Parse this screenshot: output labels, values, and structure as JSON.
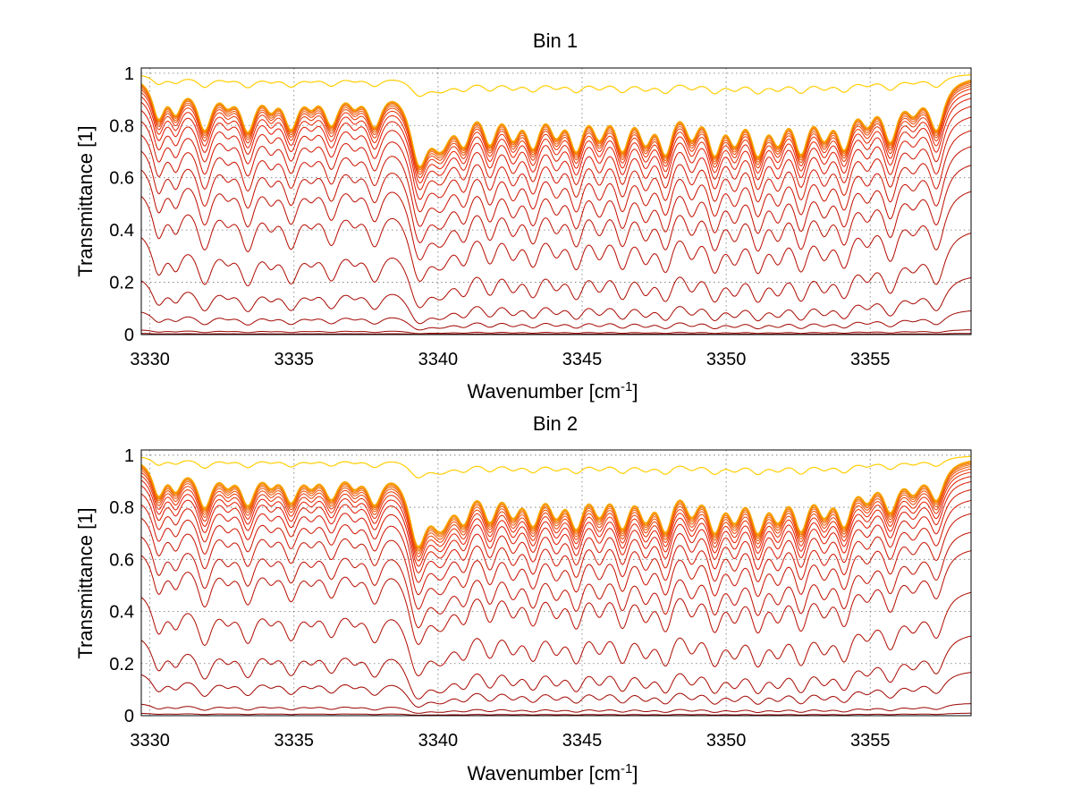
{
  "chart_data": [
    {
      "type": "line",
      "title": "Bin 1",
      "xlabel": "Wavenumber [cm",
      "xlabel_sup": "-1",
      "xlabel_end": "]",
      "ylabel": "Transmittance [1]",
      "xlim": [
        3329.7,
        3358.5
      ],
      "ylim": [
        0,
        1.02
      ],
      "xticks": [
        3330,
        3335,
        3340,
        3345,
        3350,
        3355
      ],
      "xtick_labels": [
        "3330",
        "3335",
        "3340",
        "3345",
        "3350",
        "3355"
      ],
      "yticks": [
        0,
        0.2,
        0.4,
        0.6,
        0.8,
        1
      ],
      "ytick_labels": [
        "0",
        "0.2",
        "0.4",
        "0.6",
        "0.8",
        "1"
      ],
      "grid": true,
      "legend": "none",
      "baseline_levels": [
        0.0,
        0.005,
        0.02,
        0.1,
        0.24,
        0.42,
        0.58,
        0.68,
        0.75,
        0.81,
        0.86,
        0.9,
        0.93,
        0.95,
        0.965,
        0.975,
        0.982,
        0.988,
        0.992,
        0.995,
        0.997,
        0.998,
        0.999,
        1.0
      ],
      "absorption_lines": [
        {
          "x": 3330.3,
          "depth": 0.45,
          "width": 0.25
        },
        {
          "x": 3330.9,
          "depth": 0.35,
          "width": 0.25
        },
        {
          "x": 3331.9,
          "depth": 0.6,
          "width": 0.3
        },
        {
          "x": 3332.7,
          "depth": 0.2,
          "width": 0.25
        },
        {
          "x": 3333.4,
          "depth": 0.6,
          "width": 0.3
        },
        {
          "x": 3334.2,
          "depth": 0.25,
          "width": 0.25
        },
        {
          "x": 3334.9,
          "depth": 0.55,
          "width": 0.3
        },
        {
          "x": 3335.6,
          "depth": 0.2,
          "width": 0.25
        },
        {
          "x": 3336.3,
          "depth": 0.5,
          "width": 0.3
        },
        {
          "x": 3337.1,
          "depth": 0.2,
          "width": 0.25
        },
        {
          "x": 3337.8,
          "depth": 0.5,
          "width": 0.3
        },
        {
          "x": 3339.35,
          "depth": 0.97,
          "width": 0.35
        },
        {
          "x": 3340.1,
          "depth": 0.7,
          "width": 0.45
        },
        {
          "x": 3340.9,
          "depth": 0.6,
          "width": 0.3
        },
        {
          "x": 3341.8,
          "depth": 0.65,
          "width": 0.3
        },
        {
          "x": 3342.6,
          "depth": 0.55,
          "width": 0.3
        },
        {
          "x": 3343.3,
          "depth": 0.7,
          "width": 0.3
        },
        {
          "x": 3344.1,
          "depth": 0.5,
          "width": 0.3
        },
        {
          "x": 3344.8,
          "depth": 0.75,
          "width": 0.3
        },
        {
          "x": 3345.6,
          "depth": 0.55,
          "width": 0.3
        },
        {
          "x": 3346.4,
          "depth": 0.75,
          "width": 0.3
        },
        {
          "x": 3347.2,
          "depth": 0.6,
          "width": 0.3
        },
        {
          "x": 3347.9,
          "depth": 0.8,
          "width": 0.3
        },
        {
          "x": 3348.8,
          "depth": 0.55,
          "width": 0.3
        },
        {
          "x": 3349.6,
          "depth": 0.8,
          "width": 0.3
        },
        {
          "x": 3350.3,
          "depth": 0.6,
          "width": 0.3
        },
        {
          "x": 3351.1,
          "depth": 0.8,
          "width": 0.3
        },
        {
          "x": 3351.8,
          "depth": 0.6,
          "width": 0.3
        },
        {
          "x": 3352.6,
          "depth": 0.8,
          "width": 0.3
        },
        {
          "x": 3353.4,
          "depth": 0.55,
          "width": 0.3
        },
        {
          "x": 3354.1,
          "depth": 0.75,
          "width": 0.3
        },
        {
          "x": 3354.9,
          "depth": 0.4,
          "width": 0.3
        },
        {
          "x": 3355.7,
          "depth": 0.7,
          "width": 0.3
        },
        {
          "x": 3356.5,
          "depth": 0.3,
          "width": 0.3
        },
        {
          "x": 3357.3,
          "depth": 0.6,
          "width": 0.3
        }
      ],
      "series_color_start": "#8b0000",
      "series_color_mid": "#e51a00",
      "series_color_end": "#ffd000"
    },
    {
      "type": "line",
      "title": "Bin 2",
      "xlabel": "Wavenumber [cm",
      "xlabel_sup": "-1",
      "xlabel_end": "]",
      "ylabel": "Transmittance [1]",
      "xlim": [
        3329.7,
        3358.5
      ],
      "ylim": [
        0,
        1.02
      ],
      "xticks": [
        3330,
        3335,
        3340,
        3345,
        3350,
        3355
      ],
      "xtick_labels": [
        "3330",
        "3335",
        "3340",
        "3345",
        "3350",
        "3355"
      ],
      "yticks": [
        0,
        0.2,
        0.4,
        0.6,
        0.8,
        1
      ],
      "ytick_labels": [
        "0",
        "0.2",
        "0.4",
        "0.6",
        "0.8",
        "1"
      ],
      "grid": true,
      "legend": "none",
      "baseline_levels": [
        0.0,
        0.01,
        0.05,
        0.18,
        0.33,
        0.5,
        0.66,
        0.73,
        0.8,
        0.85,
        0.89,
        0.92,
        0.94,
        0.956,
        0.968,
        0.977,
        0.984,
        0.989,
        0.993,
        0.996,
        0.998,
        0.999,
        1.0
      ],
      "absorption_lines": [
        {
          "x": 3330.3,
          "depth": 0.4,
          "width": 0.25
        },
        {
          "x": 3330.9,
          "depth": 0.3,
          "width": 0.25
        },
        {
          "x": 3331.9,
          "depth": 0.55,
          "width": 0.3
        },
        {
          "x": 3332.7,
          "depth": 0.2,
          "width": 0.25
        },
        {
          "x": 3333.4,
          "depth": 0.5,
          "width": 0.3
        },
        {
          "x": 3334.2,
          "depth": 0.2,
          "width": 0.25
        },
        {
          "x": 3334.9,
          "depth": 0.45,
          "width": 0.3
        },
        {
          "x": 3335.6,
          "depth": 0.2,
          "width": 0.25
        },
        {
          "x": 3336.3,
          "depth": 0.4,
          "width": 0.3
        },
        {
          "x": 3337.1,
          "depth": 0.2,
          "width": 0.25
        },
        {
          "x": 3337.8,
          "depth": 0.45,
          "width": 0.3
        },
        {
          "x": 3339.3,
          "depth": 0.97,
          "width": 0.35
        },
        {
          "x": 3340.1,
          "depth": 0.7,
          "width": 0.45
        },
        {
          "x": 3340.9,
          "depth": 0.55,
          "width": 0.3
        },
        {
          "x": 3341.8,
          "depth": 0.6,
          "width": 0.3
        },
        {
          "x": 3342.6,
          "depth": 0.5,
          "width": 0.3
        },
        {
          "x": 3343.3,
          "depth": 0.65,
          "width": 0.3
        },
        {
          "x": 3344.1,
          "depth": 0.5,
          "width": 0.3
        },
        {
          "x": 3344.8,
          "depth": 0.7,
          "width": 0.3
        },
        {
          "x": 3345.6,
          "depth": 0.5,
          "width": 0.3
        },
        {
          "x": 3346.4,
          "depth": 0.7,
          "width": 0.3
        },
        {
          "x": 3347.2,
          "depth": 0.55,
          "width": 0.3
        },
        {
          "x": 3347.9,
          "depth": 0.75,
          "width": 0.3
        },
        {
          "x": 3348.8,
          "depth": 0.5,
          "width": 0.3
        },
        {
          "x": 3349.6,
          "depth": 0.75,
          "width": 0.3
        },
        {
          "x": 3350.3,
          "depth": 0.55,
          "width": 0.3
        },
        {
          "x": 3351.1,
          "depth": 0.75,
          "width": 0.3
        },
        {
          "x": 3351.8,
          "depth": 0.55,
          "width": 0.3
        },
        {
          "x": 3352.6,
          "depth": 0.75,
          "width": 0.3
        },
        {
          "x": 3353.4,
          "depth": 0.5,
          "width": 0.3
        },
        {
          "x": 3354.1,
          "depth": 0.7,
          "width": 0.3
        },
        {
          "x": 3354.9,
          "depth": 0.35,
          "width": 0.3
        },
        {
          "x": 3355.7,
          "depth": 0.55,
          "width": 0.3
        },
        {
          "x": 3356.5,
          "depth": 0.3,
          "width": 0.3
        },
        {
          "x": 3357.3,
          "depth": 0.45,
          "width": 0.3
        }
      ],
      "series_color_start": "#8b0000",
      "series_color_mid": "#e51a00",
      "series_color_end": "#ffd000"
    }
  ]
}
